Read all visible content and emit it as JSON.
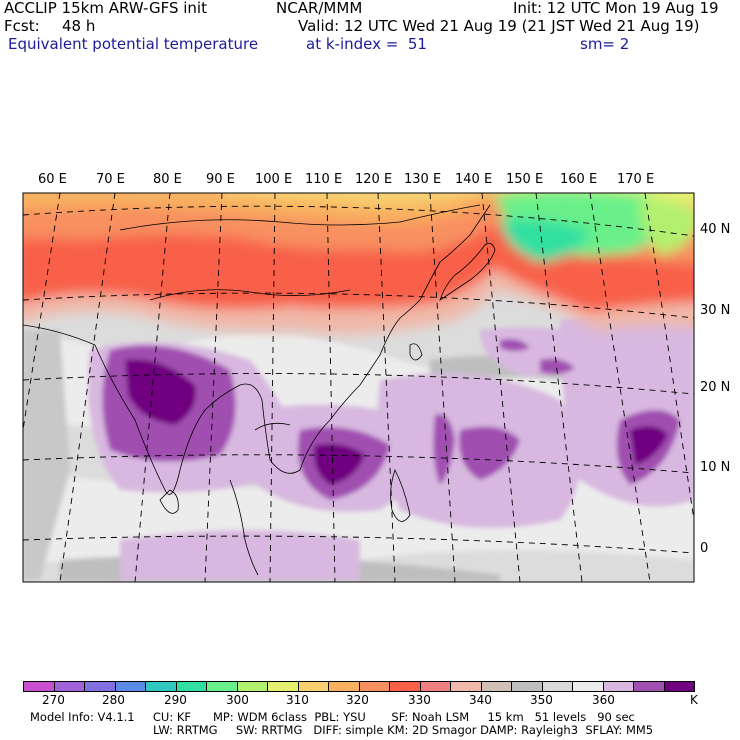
{
  "header": {
    "model": "ACCLIP 15km ARW-GFS init",
    "org": "NCAR/MMM",
    "init": "Init: 12 UTC Mon 19 Aug 19",
    "fcst_label": "Fcst:",
    "fcst_value": "48 h",
    "valid": "Valid: 12 UTC Wed 21 Aug 19 (21 JST Wed 21 Aug 19)",
    "field": "Equivalent potential temperature",
    "level": "at k-index =  51",
    "smoothing": "sm= 2"
  },
  "map": {
    "longitude_labels": [
      "60 E",
      "70 E",
      "80 E",
      "90 E",
      "100 E",
      "110 E",
      "120 E",
      "130 E",
      "140 E",
      "150 E",
      "160 E",
      "170 E"
    ],
    "latitude_labels": [
      "40 N",
      "30 N",
      "20 N",
      "10 N",
      "0"
    ]
  },
  "colorbar": {
    "colors": [
      "#c84fd0",
      "#a064d8",
      "#8070e0",
      "#5a8be6",
      "#30c8c0",
      "#30e0a0",
      "#6af08a",
      "#b4f070",
      "#e6f070",
      "#f8d070",
      "#f8b060",
      "#f89060",
      "#f86048",
      "#f08080",
      "#f0b8a8",
      "#d0c0b8",
      "#bebebe",
      "#d8d8d8",
      "#ececec",
      "#d8b8e0",
      "#a050b0",
      "#700080"
    ],
    "labels": [
      "270",
      "280",
      "290",
      "300",
      "310",
      "320",
      "330",
      "340",
      "350",
      "360"
    ],
    "unit": "K"
  },
  "footer": {
    "line1": "Model Info: V4.1.1     CU: KF      MP: WDM 6class  PBL: YSU       SF: Noah LSM     15 km   51 levels   90 sec",
    "line2": "LW: RRTMG     SW: RRTMG   DIFF: simple KM: 2D Smagor DAMP: Rayleigh3  SFLAY: MM5"
  }
}
